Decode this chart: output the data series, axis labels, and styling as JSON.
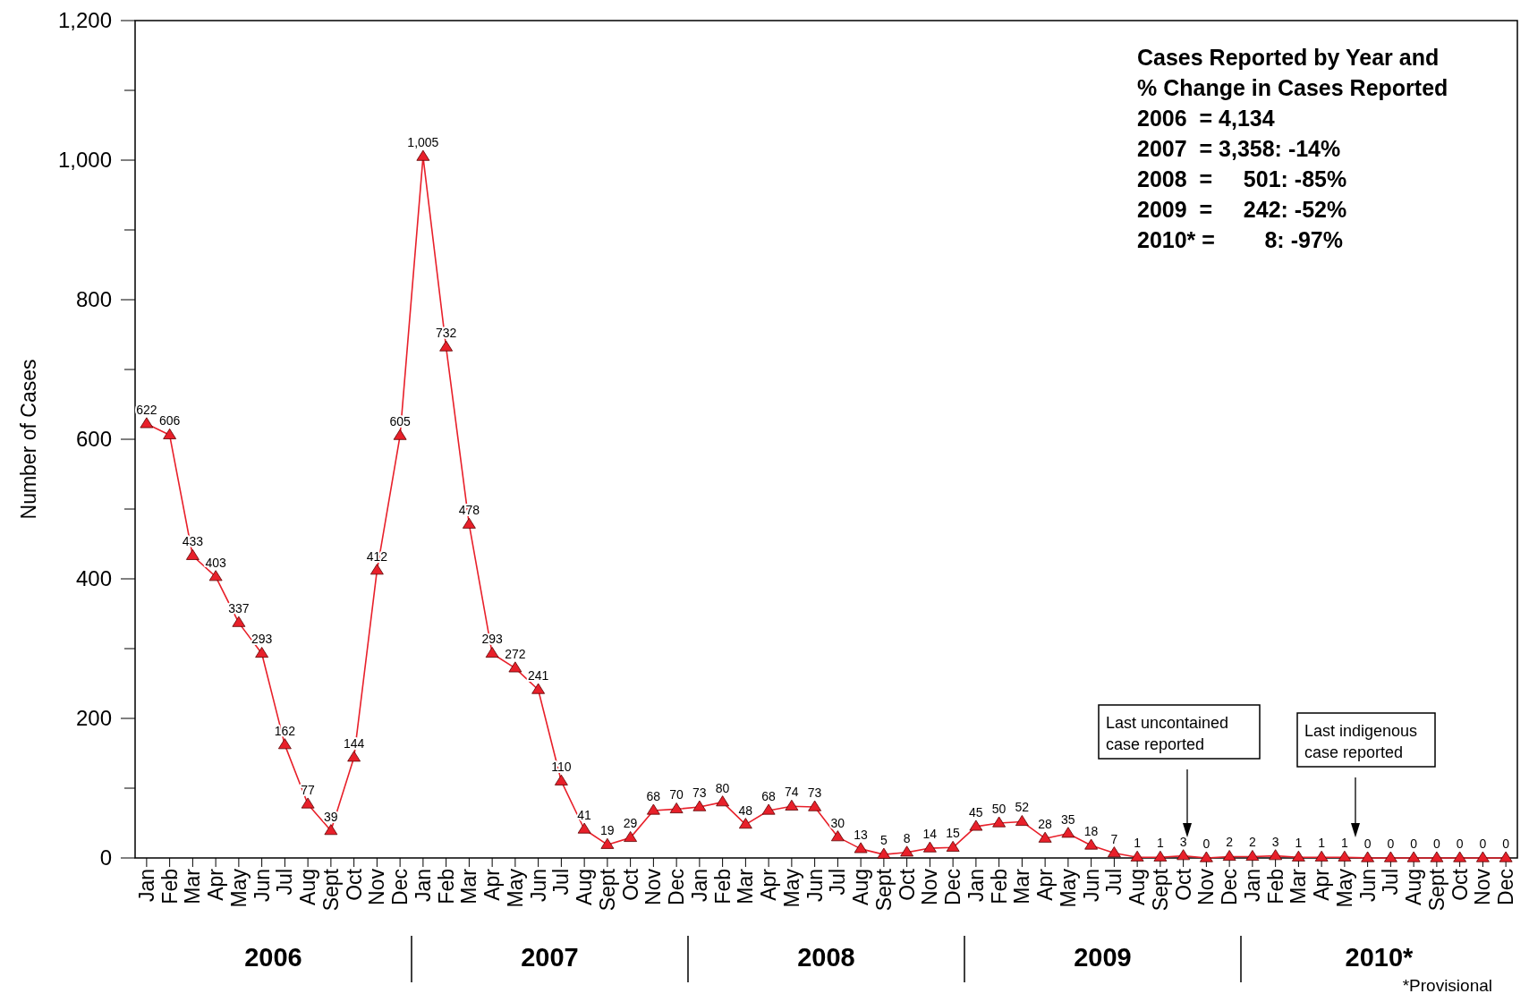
{
  "chart_data": {
    "type": "line",
    "ylabel": "Number of Cases",
    "categories": [
      "Jan",
      "Feb",
      "Mar",
      "Apr",
      "May",
      "Jun",
      "Jul",
      "Aug",
      "Sept",
      "Oct",
      "Nov",
      "Dec",
      "Jan",
      "Feb",
      "Mar",
      "Apr",
      "May",
      "Jun",
      "Jul",
      "Aug",
      "Sept",
      "Oct",
      "Nov",
      "Dec",
      "Jan",
      "Feb",
      "Mar",
      "Apr",
      "May",
      "Jun",
      "Jul",
      "Aug",
      "Sept",
      "Oct",
      "Nov",
      "Dec",
      "Jan",
      "Feb",
      "Mar",
      "Apr",
      "May",
      "Jun",
      "Jul",
      "Aug",
      "Sept",
      "Oct",
      "Nov",
      "Dec",
      "Jan",
      "Feb",
      "Mar",
      "Apr",
      "May",
      "Jun",
      "Jul",
      "Aug",
      "Sept",
      "Oct",
      "Nov",
      "Dec"
    ],
    "series": [
      {
        "color": "#e8202a",
        "values": [
          622,
          606,
          433,
          403,
          337,
          293,
          162,
          77,
          39,
          144,
          412,
          605,
          1005,
          732,
          478,
          293,
          272,
          241,
          110,
          41,
          19,
          29,
          68,
          70,
          73,
          80,
          48,
          68,
          74,
          73,
          30,
          13,
          5,
          8,
          14,
          15,
          45,
          50,
          52,
          28,
          35,
          18,
          7,
          1,
          1,
          3,
          0,
          2,
          2,
          3,
          1,
          1,
          1,
          0,
          0,
          0,
          0,
          0,
          0,
          0
        ],
        "value_labels": [
          "622",
          "606",
          "433",
          "403",
          "337",
          "293",
          "162",
          "77",
          "39",
          "144",
          "412",
          "605",
          "1,005",
          "732",
          "478",
          "293",
          "272",
          "241",
          "110",
          "41",
          "19",
          "29",
          "68",
          "70",
          "73",
          "80",
          "48",
          "68",
          "74",
          "73",
          "30",
          "13",
          "5",
          "8",
          "14",
          "15",
          "45",
          "50",
          "52",
          "28",
          "35",
          "18",
          "7",
          "1",
          "1",
          "3",
          "0",
          "2",
          "2",
          "3",
          "1",
          "1",
          "1",
          "0",
          "0",
          "0",
          "0",
          "0",
          "0",
          "0"
        ]
      }
    ],
    "ylim": [
      0,
      1200
    ],
    "yticks": [
      0,
      {
        "value": 100,
        "label": null
      },
      {
        "value": 200,
        "label": "200"
      },
      {
        "value": 300,
        "label": null
      },
      {
        "value": 400,
        "label": "400"
      },
      {
        "value": 500,
        "label": null
      },
      {
        "value": 600,
        "label": "600"
      },
      {
        "value": 700,
        "label": null
      },
      {
        "value": 800,
        "label": "800"
      },
      {
        "value": 900,
        "label": null
      },
      {
        "value": 1000,
        "label": "1,000"
      },
      {
        "value": 1100,
        "label": null
      },
      {
        "value": 1200,
        "label": "1,200"
      }
    ],
    "marker": "triangle",
    "line_style": "solid",
    "grid": false,
    "annotations": [
      "Cases Reported by Year and",
      "% Change in Cases Reported",
      "2006  = 4,134",
      "2007  = 3,358: -14%",
      "2008  =     501: -85%",
      "2009  =     242: -52%",
      "2010* =        8: -97%",
      "2006",
      "2007",
      "2008",
      "2009",
      "2010*",
      "Last uncontained case reported",
      "Last indigenous case reported",
      "*Provisional"
    ]
  }
}
